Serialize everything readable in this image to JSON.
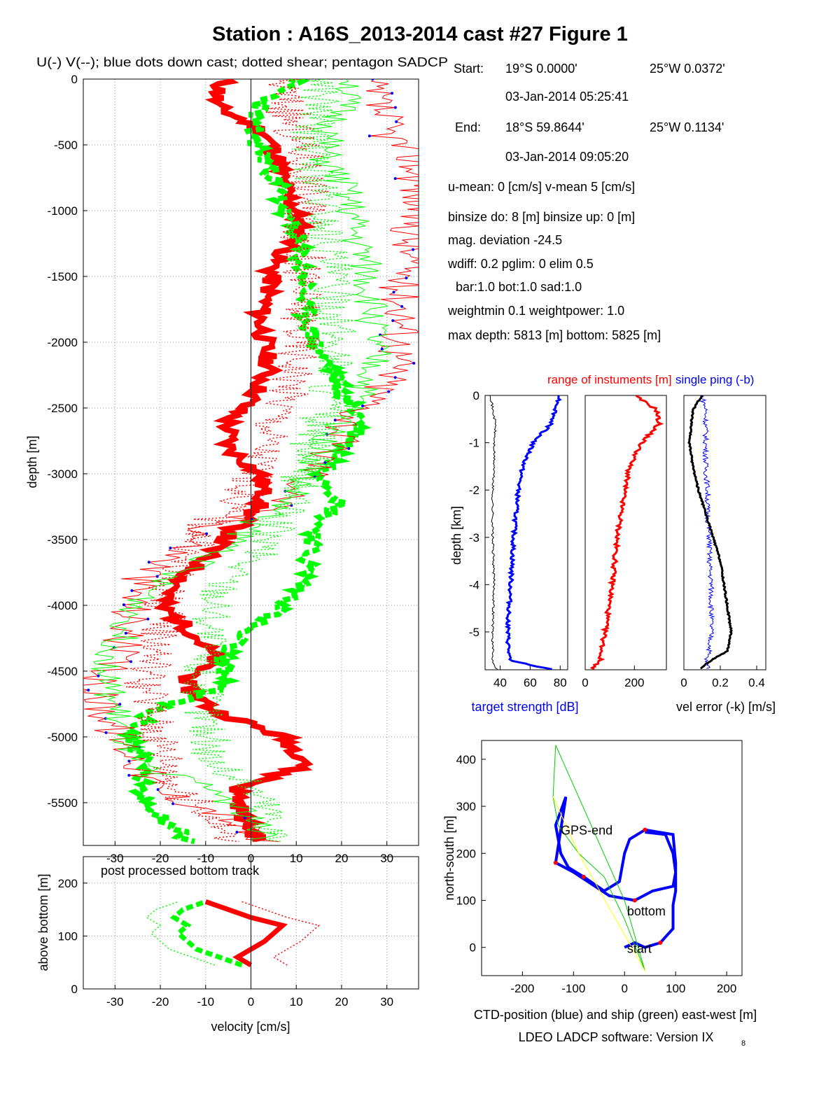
{
  "title": "Station : A16S_2013-2014 cast #27  Figure 1",
  "main_panel": {
    "subtitle": "U(-) V(--); blue dots down cast; dotted shear; pentagon SADCP",
    "ylabel": "depth [m]"
  },
  "bottom_panel": {
    "annotation": "post processed bottom track",
    "ylabel": "above bottom [m]",
    "xlabel": "velocity [cm/s]"
  },
  "info": {
    "start_label": "Start:",
    "start_lat": "19°S  0.0000'",
    "start_lon": "25°W  0.0372'",
    "start_time": "03-Jan-2014 05:25:41",
    "end_label": "End:",
    "end_lat": "18°S 59.8644'",
    "end_lon": "25°W  0.1134'",
    "end_time": "03-Jan-2014 09:05:20",
    "means": "u-mean:   0 [cm/s]    v-mean   5 [cm/s]",
    "binsize": "binsize do: 8 [m]  binsize up:  0 [m]",
    "magdev": "mag. deviation -24.5",
    "wdiff": "wdiff: 0.2  pglim: 0  elim 0.5",
    "bar": "bar:1.0 bot:1.0 sad:1.0",
    "weight": "weightmin 0.1  weightpower: 1.0",
    "depth": "max depth: 5813 [m]   bottom: 5825 [m]"
  },
  "diag_panels": {
    "range_title": "range of instuments [m]",
    "ping_title": "single ping (-b)",
    "ylabel": "depth [km]",
    "ts_xlabel": "target strength [dB]",
    "err_xlabel": "vel error (-k) [m/s]"
  },
  "pos_panel": {
    "ylabel": "north-south [m]",
    "xlabel": "CTD-position (blue) and ship (green) east-west [m]",
    "footer_main": "LDEO LADCP software: Version IX",
    "footer_sub": "8",
    "label_gps": "GPS-end",
    "label_bottom": "bottom",
    "label_start": "start"
  },
  "colors": {
    "u": "#ff0000",
    "v": "#00ff00",
    "downcast": "#0000ff",
    "ship": "#ffff00",
    "ctd": "#0000ff",
    "error": "#000000"
  },
  "chart_data": [
    {
      "type": "line",
      "name": "velocity profile",
      "xlim": [
        -37,
        37
      ],
      "ylim": [
        -5825,
        0
      ],
      "x_ticks": [
        -30,
        -20,
        -10,
        0,
        10,
        20,
        30
      ],
      "y_ticks": [
        0,
        -500,
        -1000,
        -1500,
        -2000,
        -2500,
        -3000,
        -3500,
        -4000,
        -4500,
        -5000,
        -5500
      ],
      "grid": true,
      "depth": [
        0,
        -200,
        -400,
        -600,
        -800,
        -1000,
        -1200,
        -1400,
        -1600,
        -1800,
        -2000,
        -2200,
        -2400,
        -2600,
        -2800,
        -3000,
        -3200,
        -3400,
        -3600,
        -3800,
        -4000,
        -4200,
        -4400,
        -4600,
        -4800,
        -5000,
        -5200,
        -5400,
        -5600,
        -5800
      ],
      "series": [
        {
          "key": "U",
          "values": [
            -6,
            -8,
            3,
            6,
            7,
            10,
            11,
            5,
            4,
            2,
            3,
            4,
            1,
            -5,
            -5,
            2,
            3,
            -3,
            -9,
            -15,
            -20,
            -13,
            -8,
            -15,
            -8,
            7,
            13,
            -3,
            -2,
            2
          ]
        },
        {
          "key": "V",
          "values": [
            10,
            2,
            0,
            3,
            6,
            7,
            10,
            11,
            12,
            12,
            14,
            18,
            20,
            25,
            21,
            16,
            20,
            15,
            13,
            12,
            8,
            -2,
            -6,
            -5,
            -22,
            -27,
            -23,
            -25,
            -20,
            -13
          ]
        },
        {
          "key": "U downcast",
          "values": [
            25,
            28,
            30,
            36,
            37,
            37,
            35,
            35,
            33,
            34,
            33,
            32,
            28,
            22,
            18,
            14,
            8,
            -8,
            -16,
            -24,
            -26,
            -27,
            -30,
            -35,
            -32,
            -29,
            -24,
            -21,
            -5,
            2
          ]
        },
        {
          "key": "V downcast",
          "values": [
            23,
            20,
            17,
            16,
            20,
            22,
            23,
            25,
            26,
            27,
            27,
            27,
            24,
            20,
            16,
            13,
            8,
            0,
            -6,
            -20,
            -25,
            -28,
            -31,
            -32,
            -30,
            -28,
            -26,
            -8,
            0,
            3
          ]
        }
      ]
    },
    {
      "type": "line",
      "name": "post processed bottom track",
      "xlim": [
        -37,
        37
      ],
      "ylim": [
        0,
        250
      ],
      "x_ticks": [
        -30,
        -20,
        -10,
        0,
        10,
        20,
        30
      ],
      "y_ticks": [
        0,
        100,
        200
      ],
      "height_above_bottom": [
        45,
        60,
        75,
        90,
        105,
        120,
        135,
        150,
        165
      ],
      "series": [
        {
          "key": "U",
          "values": [
            0,
            -3,
            0,
            3,
            5,
            7,
            0,
            -5,
            -10
          ]
        },
        {
          "key": "V",
          "values": [
            -2,
            -7,
            -12,
            -14,
            -16,
            -14,
            -17,
            -15,
            -10
          ]
        }
      ]
    },
    {
      "type": "line",
      "name": "target strength",
      "xlim": [
        30,
        85
      ],
      "ylim": [
        -5.8,
        0
      ],
      "x_ticks": [
        40,
        60,
        80
      ],
      "y_ticks": [
        0,
        -1,
        -2,
        -3,
        -4,
        -5
      ],
      "depth_km": [
        0,
        -0.3,
        -0.6,
        -1.0,
        -1.5,
        -2.0,
        -3.0,
        -4.0,
        -5.0,
        -5.6,
        -5.8
      ],
      "series": [
        {
          "key": "blue",
          "values": [
            80,
            77,
            74,
            62,
            55,
            52,
            49,
            47,
            45,
            46,
            75
          ]
        },
        {
          "key": "black",
          "values": [
            34,
            35,
            37,
            36,
            36,
            35,
            35,
            36,
            35,
            35,
            38
          ]
        }
      ]
    },
    {
      "type": "line",
      "name": "range of instruments",
      "xlim": [
        0,
        330
      ],
      "ylim": [
        -5.8,
        0
      ],
      "x_ticks": [
        0,
        200
      ],
      "depth_km": [
        0,
        -0.3,
        -0.6,
        -1.0,
        -1.5,
        -2.0,
        -3.0,
        -4.0,
        -5.0,
        -5.6,
        -5.8
      ],
      "series": [
        {
          "key": "range",
          "values": [
            200,
            290,
            300,
            230,
            180,
            160,
            130,
            110,
            80,
            60,
            30
          ]
        }
      ]
    },
    {
      "type": "line",
      "name": "velocity error",
      "xlim": [
        0,
        0.45
      ],
      "ylim": [
        -5.8,
        0
      ],
      "x_ticks": [
        0,
        0.2,
        0.4
      ],
      "depth_km": [
        0,
        -0.3,
        -0.6,
        -1.0,
        -1.5,
        -2.0,
        -2.5,
        -3.0,
        -3.5,
        -4.0,
        -4.5,
        -5.0,
        -5.4,
        -5.6,
        -5.8
      ],
      "series": [
        {
          "key": "single ping (-b)",
          "values": [
            0.1,
            0.12,
            0.12,
            0.12,
            0.12,
            0.13,
            0.13,
            0.14,
            0.14,
            0.15,
            0.15,
            0.15,
            0.14,
            0.12,
            0.14
          ]
        },
        {
          "key": "vel error (-k)",
          "values": [
            0.1,
            0.05,
            0.04,
            0.03,
            0.05,
            0.08,
            0.12,
            0.16,
            0.2,
            0.22,
            0.24,
            0.26,
            0.24,
            0.15,
            0.08
          ]
        }
      ]
    },
    {
      "type": "line",
      "name": "CTD and ship position",
      "xlim": [
        -280,
        230
      ],
      "ylim": [
        -60,
        440
      ],
      "x_ticks": [
        -200,
        -100,
        0,
        100,
        200
      ],
      "y_ticks": [
        0,
        100,
        200,
        300,
        400
      ],
      "series": [
        {
          "key": "CTD",
          "x": [
            0,
            20,
            40,
            70,
            95,
            95,
            100,
            100,
            95,
            40,
            10,
            0,
            -10,
            -40,
            -80,
            -110,
            -125,
            -135,
            -115,
            -125,
            -135,
            -100,
            -30,
            20,
            55,
            95,
            100,
            95,
            80,
            40
          ],
          "y": [
            0,
            10,
            0,
            10,
            40,
            90,
            120,
            180,
            240,
            250,
            230,
            200,
            140,
            120,
            150,
            170,
            200,
            260,
            320,
            250,
            180,
            160,
            110,
            100,
            120,
            130,
            160,
            200,
            240,
            245
          ]
        },
        {
          "key": "ship",
          "x": [
            40,
            0,
            -40,
            -90,
            -130,
            -140,
            -135,
            0,
            40
          ],
          "y": [
            -50,
            60,
            150,
            200,
            260,
            320,
            430,
            100,
            -50
          ]
        }
      ]
    }
  ]
}
